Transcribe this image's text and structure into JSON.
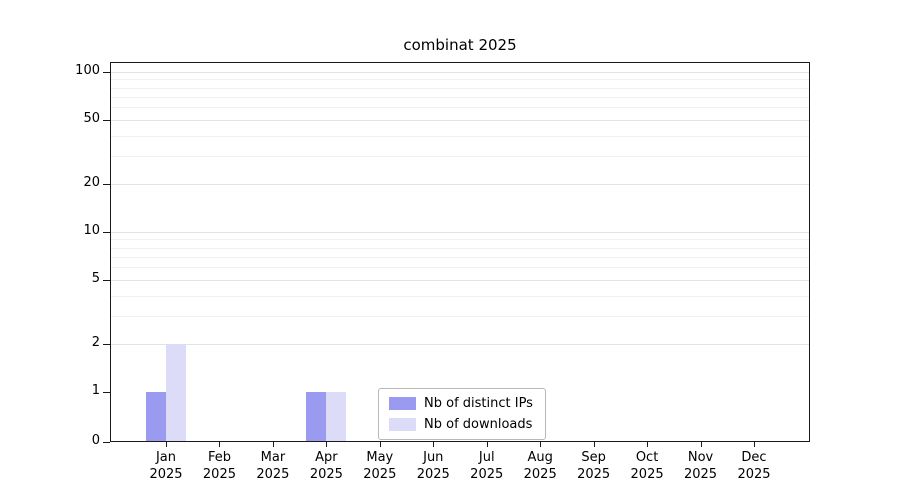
{
  "title": "combinat 2025",
  "chart_data": {
    "type": "bar",
    "title": "combinat 2025",
    "categories": [
      "Jan",
      "Feb",
      "Mar",
      "Apr",
      "May",
      "Jun",
      "Jul",
      "Aug",
      "Sep",
      "Oct",
      "Nov",
      "Dec"
    ],
    "year_label": "2025",
    "series": [
      {
        "name": "Nb of distinct IPs",
        "color": "#9a9af0",
        "values": [
          1,
          0,
          0,
          1,
          0,
          0,
          0,
          0,
          0,
          0,
          0,
          0
        ]
      },
      {
        "name": "Nb of downloads",
        "color": "#dcdcf9",
        "values": [
          2,
          0,
          0,
          1,
          0,
          0,
          0,
          0,
          0,
          0,
          0,
          0
        ]
      }
    ],
    "yticks": [
      0,
      1,
      2,
      5,
      10,
      20,
      50,
      100
    ],
    "grid_values": [
      2,
      3,
      4,
      5,
      6,
      7,
      8,
      9,
      10,
      20,
      30,
      40,
      50,
      60,
      70,
      80,
      90,
      100
    ],
    "ylim": [
      0,
      100
    ],
    "yscale": "symlog",
    "xlabel": "",
    "ylabel": "",
    "grid": true,
    "legend_position": "lower center"
  },
  "colors": {
    "background": "#ffffff",
    "axis": "#1a1a1a",
    "grid_major": "#e3e3e3",
    "grid_minor": "#f1f1f1"
  }
}
